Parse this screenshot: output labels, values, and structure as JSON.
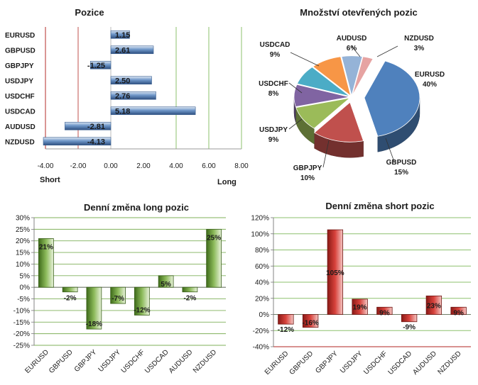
{
  "chart_data": [
    {
      "id": "positions",
      "type": "bar",
      "orientation": "horizontal",
      "title": "Pozice",
      "categories": [
        "EURUSD",
        "GBPUSD",
        "GBPJPY",
        "USDJPY",
        "USDCHF",
        "USDCAD",
        "AUDUSD",
        "NZDUSD"
      ],
      "values": [
        1.15,
        2.61,
        -1.25,
        2.5,
        2.76,
        5.18,
        -2.81,
        -4.13
      ],
      "value_labels": [
        "1.15",
        "2.61",
        "-1.25",
        "2.50",
        "2.76",
        "5.18",
        "-2.81",
        "-4.13"
      ],
      "xlim": [
        -4.0,
        8.0
      ],
      "xticks": [
        -4,
        -2,
        0,
        2,
        4,
        6,
        8
      ],
      "xtick_labels": [
        "-4.00",
        "-2.00",
        "0.00",
        "2.00",
        "4.00",
        "6.00",
        "8.00"
      ],
      "marker_lines": [
        -2,
        4,
        6
      ],
      "left_label": "Short",
      "right_label": "Long",
      "bar_color": "#4f81bd",
      "marker_red": "#c0504d",
      "marker_green": "#8dc16e"
    },
    {
      "id": "open-positions",
      "type": "pie",
      "title": "Množství otevřených pozic",
      "slices": [
        {
          "label": "EURUSD",
          "percent": 40,
          "text": "40%",
          "color": "#4f81bd"
        },
        {
          "label": "GBPUSD",
          "percent": 15,
          "text": "15%",
          "color": "#c0504d"
        },
        {
          "label": "GBPJPY",
          "percent": 10,
          "text": "10%",
          "color": "#9bbb59"
        },
        {
          "label": "USDJPY",
          "percent": 9,
          "text": "9%",
          "color": "#8064a2"
        },
        {
          "label": "USDCHF",
          "percent": 8,
          "text": "8%",
          "color": "#4bacc6"
        },
        {
          "label": "USDCAD",
          "percent": 9,
          "text": "9%",
          "color": "#f79646"
        },
        {
          "label": "AUDUSD",
          "percent": 6,
          "text": "6%",
          "color": "#95b3d7"
        },
        {
          "label": "NZDUSD",
          "percent": 3,
          "text": "3%",
          "color": "#e6a3a2"
        }
      ]
    },
    {
      "id": "long-change",
      "type": "bar",
      "title": "Denní změna long pozic",
      "categories": [
        "EURUSD",
        "GBPUSD",
        "GBPJPY",
        "USDJPY",
        "USDCHF",
        "USDCAD",
        "AUDUSD",
        "NZDUSD"
      ],
      "values": [
        21,
        -2,
        -18,
        -7,
        -12,
        5,
        -2,
        25
      ],
      "value_labels": [
        "21%",
        "-2%",
        "-18%",
        "-7%",
        "-12%",
        "5%",
        "-2%",
        "25%"
      ],
      "ylim": [
        -25,
        30
      ],
      "yticks": [
        -25,
        -20,
        -15,
        -10,
        -5,
        0,
        5,
        10,
        15,
        20,
        25,
        30
      ],
      "ytick_labels": [
        "-25%",
        "-20%",
        "-15%",
        "-10%",
        "-5%",
        "0%",
        "5%",
        "10%",
        "15%",
        "20%",
        "25%",
        "30%"
      ],
      "bar_color": "#5f8a2e",
      "grid_color": "#7fb05a"
    },
    {
      "id": "short-change",
      "type": "bar",
      "title": "Denní změna short pozic",
      "categories": [
        "EURUSD",
        "GBPUSD",
        "GBPJPY",
        "USDJPY",
        "USDCHF",
        "USDCAD",
        "AUDUSD",
        "NZDUSD"
      ],
      "values": [
        -12,
        -16,
        105,
        19,
        9,
        -9,
        23,
        9
      ],
      "value_labels": [
        "-12%",
        "-16%",
        "105%",
        "19%",
        "9%",
        "-9%",
        "23%",
        "9%"
      ],
      "ylim": [
        -40,
        120
      ],
      "yticks": [
        -40,
        -20,
        0,
        20,
        40,
        60,
        80,
        100,
        120
      ],
      "ytick_labels": [
        "-40%",
        "-20%",
        "0%",
        "20%",
        "40%",
        "60%",
        "80%",
        "100%",
        "120%"
      ],
      "bar_color": "#c0312b",
      "grid_color": "#8dc16e",
      "bottom_line_color": "#c0504d"
    }
  ]
}
